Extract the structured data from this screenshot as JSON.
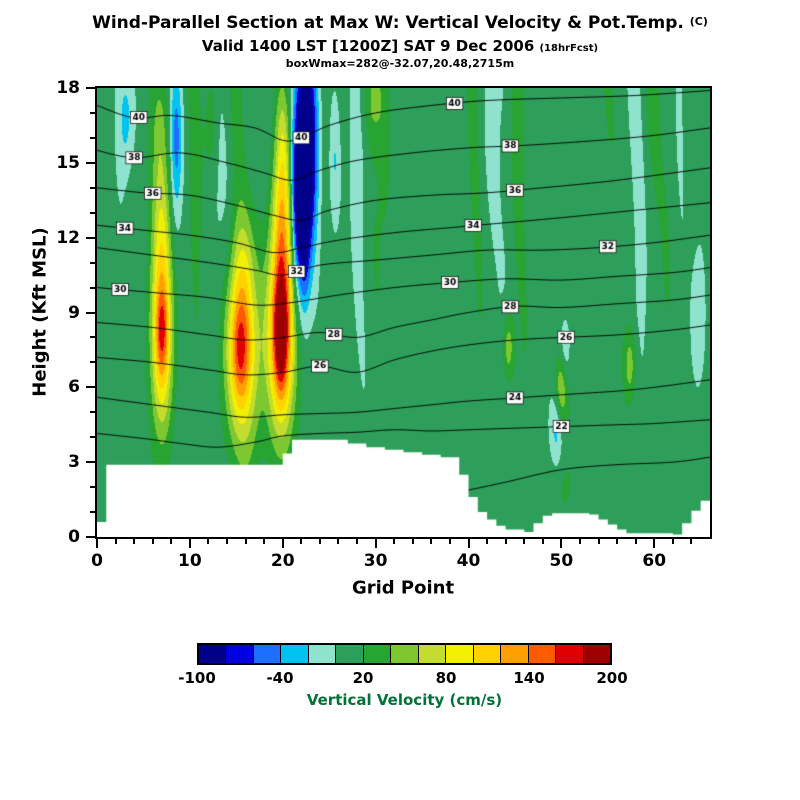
{
  "header": {
    "title": "Wind-Parallel Section at Max W: Vertical Velocity & Pot.Temp.",
    "title_units": "(C)",
    "subtitle": "Valid 1400 LST [1200Z] SAT 9 Dec 2006",
    "subtitle_note": "(18hrFcst)",
    "info_line": "boxWmax=282@-32.07,20.48,2715m"
  },
  "chart_data": {
    "type": "heatmap",
    "title": "Wind-Parallel Section at Max W: Vertical Velocity & Pot.Temp. (C)",
    "xlabel": "Grid Point",
    "ylabel": "Height (Kft MSL)",
    "xlim": [
      0,
      66
    ],
    "ylim": [
      0,
      18
    ],
    "x_major_ticks": [
      0,
      10,
      20,
      30,
      40,
      50,
      60
    ],
    "x_minor_step": 2,
    "y_major_ticks": [
      0,
      3,
      6,
      9,
      12,
      15,
      18
    ],
    "y_minor_step": 1,
    "fill_field_name": "Vertical Velocity (cm/s)",
    "contour_field_name": "Potential Temperature (C)",
    "contour_interval": 2,
    "colorbar": {
      "label": "Vertical Velocity (cm/s)",
      "label_color": "#007236",
      "ticks": [
        -100,
        -40,
        20,
        80,
        140,
        200
      ],
      "range": [
        -100,
        200
      ],
      "level_step": 20,
      "colors": [
        "#00008B",
        "#0000E1",
        "#1E6EFF",
        "#00C3F0",
        "#8FE3CE",
        "#2E9E5B",
        "#28A432",
        "#7DC831",
        "#C3DC2D",
        "#F0F000",
        "#FFD200",
        "#FFA000",
        "#FF5A00",
        "#E10000",
        "#9E0000"
      ]
    },
    "texture": {
      "base": 10,
      "amp_low": 8,
      "amp_high": 18
    },
    "w_features": [
      [
        7.0,
        8.0,
        0.8,
        2.6,
        115
      ],
      [
        7.0,
        8.3,
        0.45,
        1.1,
        45
      ],
      [
        7.0,
        12.5,
        0.7,
        2.2,
        55
      ],
      [
        6.8,
        16.5,
        0.6,
        1.8,
        35
      ],
      [
        8.5,
        15.8,
        0.45,
        2.2,
        -55
      ],
      [
        15.6,
        7.2,
        1.4,
        2.6,
        100
      ],
      [
        15.4,
        7.6,
        0.7,
        1.4,
        48
      ],
      [
        15.8,
        10.8,
        0.9,
        1.8,
        35
      ],
      [
        19.8,
        8.2,
        1.05,
        2.8,
        150
      ],
      [
        19.8,
        8.2,
        0.5,
        1.5,
        75
      ],
      [
        19.9,
        12.8,
        0.75,
        2.2,
        70
      ],
      [
        20.1,
        16.0,
        0.6,
        1.8,
        45
      ],
      [
        22.4,
        15.6,
        0.85,
        2.8,
        -150
      ],
      [
        22.2,
        11.8,
        0.55,
        2.2,
        -70
      ],
      [
        21.4,
        13.0,
        0.35,
        2.0,
        -45
      ],
      [
        25.6,
        15.2,
        0.5,
        2.4,
        -40
      ],
      [
        3.2,
        16.8,
        0.6,
        1.6,
        -35
      ],
      [
        12.3,
        16.9,
        0.5,
        1.6,
        30
      ],
      [
        29.8,
        17.4,
        0.9,
        1.2,
        28
      ],
      [
        50.0,
        5.9,
        0.5,
        1.0,
        62
      ],
      [
        49.5,
        4.3,
        0.5,
        1.2,
        -40
      ],
      [
        50.4,
        7.3,
        0.4,
        1.1,
        -32
      ],
      [
        44.3,
        7.6,
        0.45,
        1.0,
        48
      ],
      [
        57.4,
        6.9,
        0.45,
        1.0,
        42
      ],
      [
        64.8,
        9.0,
        0.5,
        2.0,
        -28
      ],
      [
        49.8,
        2.2,
        1.2,
        1.2,
        14
      ]
    ],
    "terrain_steps": [
      [
        0,
        0.6
      ],
      [
        1,
        2.9
      ],
      [
        20,
        3.35
      ],
      [
        21,
        3.9
      ],
      [
        27,
        3.75
      ],
      [
        29,
        3.6
      ],
      [
        31,
        3.5
      ],
      [
        33,
        3.4
      ],
      [
        35,
        3.3
      ],
      [
        37,
        3.2
      ],
      [
        39,
        2.5
      ],
      [
        40,
        1.6
      ],
      [
        41,
        1.0
      ],
      [
        42,
        0.7
      ],
      [
        43,
        0.45
      ],
      [
        44,
        0.3
      ],
      [
        46,
        0.2
      ],
      [
        47,
        0.55
      ],
      [
        48,
        0.85
      ],
      [
        49,
        0.95
      ],
      [
        53,
        0.9
      ],
      [
        54,
        0.7
      ],
      [
        55,
        0.5
      ],
      [
        56,
        0.3
      ],
      [
        57,
        0.15
      ],
      [
        62,
        0.1
      ],
      [
        63,
        0.55
      ],
      [
        64,
        1.05
      ],
      [
        65,
        1.45
      ]
    ],
    "theta_contours": [
      {
        "level": 40,
        "label_x": [
          4.5,
          22,
          38.5
        ],
        "points": [
          [
            0,
            17.3
          ],
          [
            4,
            16.8
          ],
          [
            8,
            16.9
          ],
          [
            13,
            16.6
          ],
          [
            17,
            16.4
          ],
          [
            20,
            15.9
          ],
          [
            22,
            16.0
          ],
          [
            25,
            16.5
          ],
          [
            30,
            17.0
          ],
          [
            36,
            17.3
          ],
          [
            42,
            17.5
          ],
          [
            50,
            17.6
          ],
          [
            58,
            17.7
          ],
          [
            66,
            17.9
          ]
        ]
      },
      {
        "level": 38,
        "label_x": [
          4,
          44.5
        ],
        "points": [
          [
            0,
            15.5
          ],
          [
            4,
            15.2
          ],
          [
            9,
            15.4
          ],
          [
            14,
            15.0
          ],
          [
            18,
            14.6
          ],
          [
            21,
            14.3
          ],
          [
            24,
            14.7
          ],
          [
            28,
            15.1
          ],
          [
            34,
            15.4
          ],
          [
            40,
            15.6
          ],
          [
            46,
            15.7
          ],
          [
            54,
            15.9
          ],
          [
            60,
            16.1
          ],
          [
            66,
            16.4
          ]
        ]
      },
      {
        "level": 36,
        "label_x": [
          6,
          45
        ],
        "points": [
          [
            0,
            14.0
          ],
          [
            5,
            13.8
          ],
          [
            10,
            13.7
          ],
          [
            15,
            13.3
          ],
          [
            19,
            12.9
          ],
          [
            22,
            12.7
          ],
          [
            25,
            13.1
          ],
          [
            30,
            13.5
          ],
          [
            36,
            13.7
          ],
          [
            42,
            13.8
          ],
          [
            48,
            14.0
          ],
          [
            56,
            14.3
          ],
          [
            66,
            14.8
          ]
        ]
      },
      {
        "level": 34,
        "label_x": [
          3,
          40.5
        ],
        "points": [
          [
            0,
            12.5
          ],
          [
            5,
            12.3
          ],
          [
            10,
            12.1
          ],
          [
            15,
            11.8
          ],
          [
            19,
            11.4
          ],
          [
            22,
            11.6
          ],
          [
            26,
            11.9
          ],
          [
            32,
            12.2
          ],
          [
            38,
            12.4
          ],
          [
            44,
            12.6
          ],
          [
            50,
            12.8
          ],
          [
            58,
            13.1
          ],
          [
            66,
            13.4
          ]
        ]
      },
      {
        "level": 32,
        "label_x": [
          21.5,
          55
        ],
        "points": [
          [
            0,
            11.6
          ],
          [
            6,
            11.3
          ],
          [
            12,
            11.0
          ],
          [
            17,
            10.7
          ],
          [
            20,
            10.5
          ],
          [
            24,
            10.9
          ],
          [
            30,
            11.1
          ],
          [
            36,
            11.3
          ],
          [
            42,
            11.5
          ],
          [
            48,
            11.5
          ],
          [
            54,
            11.6
          ],
          [
            60,
            11.8
          ],
          [
            66,
            12.1
          ]
        ]
      },
      {
        "level": 30,
        "label_x": [
          2.5,
          38
        ],
        "points": [
          [
            0,
            10.0
          ],
          [
            6,
            9.8
          ],
          [
            12,
            9.6
          ],
          [
            17,
            9.3
          ],
          [
            21,
            9.4
          ],
          [
            26,
            9.7
          ],
          [
            32,
            10.0
          ],
          [
            38,
            10.2
          ],
          [
            44,
            10.35
          ],
          [
            50,
            10.3
          ],
          [
            56,
            10.45
          ],
          [
            62,
            10.6
          ],
          [
            66,
            10.8
          ]
        ]
      },
      {
        "level": 28,
        "label_x": [
          25.5,
          44.5
        ],
        "points": [
          [
            0,
            8.6
          ],
          [
            6,
            8.4
          ],
          [
            12,
            8.1
          ],
          [
            16,
            7.9
          ],
          [
            20,
            8.0
          ],
          [
            24,
            8.2
          ],
          [
            28,
            8.0
          ],
          [
            32,
            8.4
          ],
          [
            36,
            8.7
          ],
          [
            40,
            9.0
          ],
          [
            45,
            9.25
          ],
          [
            50,
            9.2
          ],
          [
            56,
            9.35
          ],
          [
            62,
            9.5
          ],
          [
            66,
            9.7
          ]
        ]
      },
      {
        "level": 26,
        "label_x": [
          24,
          50.5
        ],
        "points": [
          [
            0,
            7.2
          ],
          [
            6,
            7.0
          ],
          [
            12,
            6.7
          ],
          [
            16,
            6.5
          ],
          [
            20,
            6.6
          ],
          [
            24,
            6.85
          ],
          [
            28,
            6.6
          ],
          [
            32,
            7.1
          ],
          [
            36,
            7.45
          ],
          [
            40,
            7.7
          ],
          [
            45,
            7.9
          ],
          [
            50,
            8.0
          ],
          [
            56,
            8.1
          ],
          [
            62,
            8.3
          ],
          [
            66,
            8.5
          ]
        ]
      },
      {
        "level": 24,
        "label_x": [
          45
        ],
        "points": [
          [
            0,
            5.6
          ],
          [
            6,
            5.3
          ],
          [
            12,
            5.0
          ],
          [
            16,
            4.8
          ],
          [
            20,
            4.9
          ],
          [
            24,
            4.95
          ],
          [
            28,
            5.0
          ],
          [
            32,
            5.15
          ],
          [
            36,
            5.3
          ],
          [
            40,
            5.45
          ],
          [
            44,
            5.55
          ],
          [
            48,
            5.65
          ],
          [
            52,
            5.75
          ],
          [
            56,
            5.85
          ],
          [
            60,
            6.0
          ],
          [
            66,
            6.3
          ]
        ]
      },
      {
        "level": 22,
        "label_x": [
          50
        ],
        "points": [
          [
            0,
            4.15
          ],
          [
            5,
            3.95
          ],
          [
            9,
            3.75
          ],
          [
            13,
            3.6
          ],
          [
            17,
            3.8
          ],
          [
            20,
            4.05
          ],
          [
            24,
            4.15
          ],
          [
            28,
            4.2
          ],
          [
            32,
            4.3
          ],
          [
            36,
            4.25
          ],
          [
            40,
            4.3
          ],
          [
            44,
            4.35
          ],
          [
            48,
            4.4
          ],
          [
            52,
            4.45
          ],
          [
            56,
            4.5
          ],
          [
            60,
            4.55
          ],
          [
            66,
            4.7
          ]
        ]
      },
      {
        "level": 20,
        "label_x": [],
        "points": [
          [
            39,
            1.8
          ],
          [
            44,
            2.2
          ],
          [
            50,
            2.7
          ],
          [
            56,
            2.9
          ],
          [
            62,
            3.0
          ],
          [
            66,
            3.2
          ]
        ]
      }
    ]
  }
}
